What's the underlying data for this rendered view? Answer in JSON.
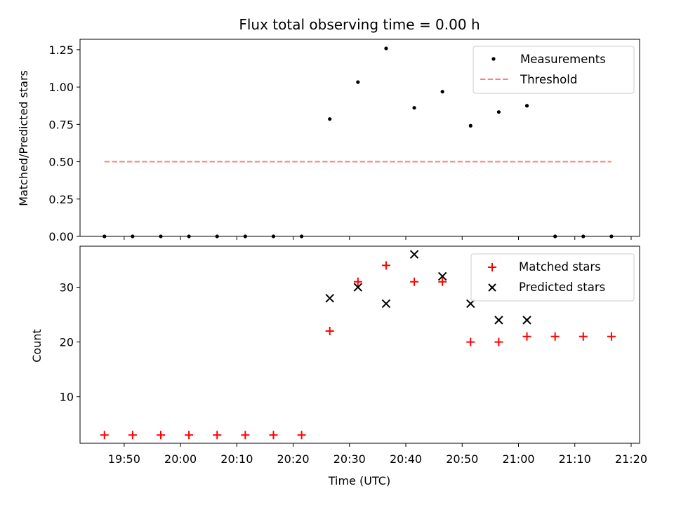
{
  "chart_data": {
    "type": "scatter",
    "title": "Flux total observing time = 0.00 h",
    "xlabel": "Time (UTC)",
    "x_ticks": [
      "19:50",
      "20:00",
      "20:10",
      "20:20",
      "20:30",
      "20:40",
      "20:50",
      "21:00",
      "21:10",
      "21:20"
    ],
    "times": [
      "19:46:30",
      "19:51:30",
      "19:56:30",
      "20:01:30",
      "20:06:30",
      "20:11:30",
      "20:16:30",
      "20:21:30",
      "20:26:30",
      "20:31:30",
      "20:36:30",
      "20:41:30",
      "20:46:30",
      "20:51:30",
      "20:56:30",
      "21:01:30",
      "21:06:30",
      "21:11:30",
      "21:16:30"
    ],
    "xlim": [
      "19:42:10",
      "21:21:30"
    ],
    "panels": [
      {
        "ylabel": "Matched/Predicted stars",
        "ylim": [
          0,
          1.32
        ],
        "y_ticks": [
          "0.00",
          "0.25",
          "0.50",
          "0.75",
          "1.00",
          "1.25"
        ],
        "legend_position": "upper right",
        "series": [
          {
            "name": "Measurements",
            "marker": "dot",
            "color": "#000000",
            "values": [
              0,
              0,
              0,
              0,
              0,
              0,
              0,
              0,
              0.786,
              1.033,
              1.259,
              0.861,
              0.969,
              0.741,
              0.833,
              0.875,
              0,
              0,
              0
            ]
          },
          {
            "name": "Threshold",
            "marker": "dashed-line",
            "color": "#ff7f7f",
            "x_range": [
              "19:46:30",
              "21:16:30"
            ],
            "value": 0.5
          }
        ]
      },
      {
        "ylabel": "Count",
        "ylim": [
          1.5,
          37.5
        ],
        "y_ticks": [
          "10",
          "20",
          "30"
        ],
        "legend_position": "upper right",
        "series": [
          {
            "name": "Matched stars",
            "marker": "plus",
            "color": "#ff0000",
            "values": [
              3,
              3,
              3,
              3,
              3,
              3,
              3,
              3,
              22,
              31,
              34,
              31,
              31,
              20,
              20,
              21,
              21,
              21,
              21
            ]
          },
          {
            "name": "Predicted stars",
            "marker": "x",
            "color": "#000000",
            "values": [
              null,
              null,
              null,
              null,
              null,
              null,
              null,
              null,
              28,
              30,
              27,
              36,
              32,
              27,
              24,
              24,
              null,
              null,
              null
            ]
          }
        ]
      }
    ]
  }
}
